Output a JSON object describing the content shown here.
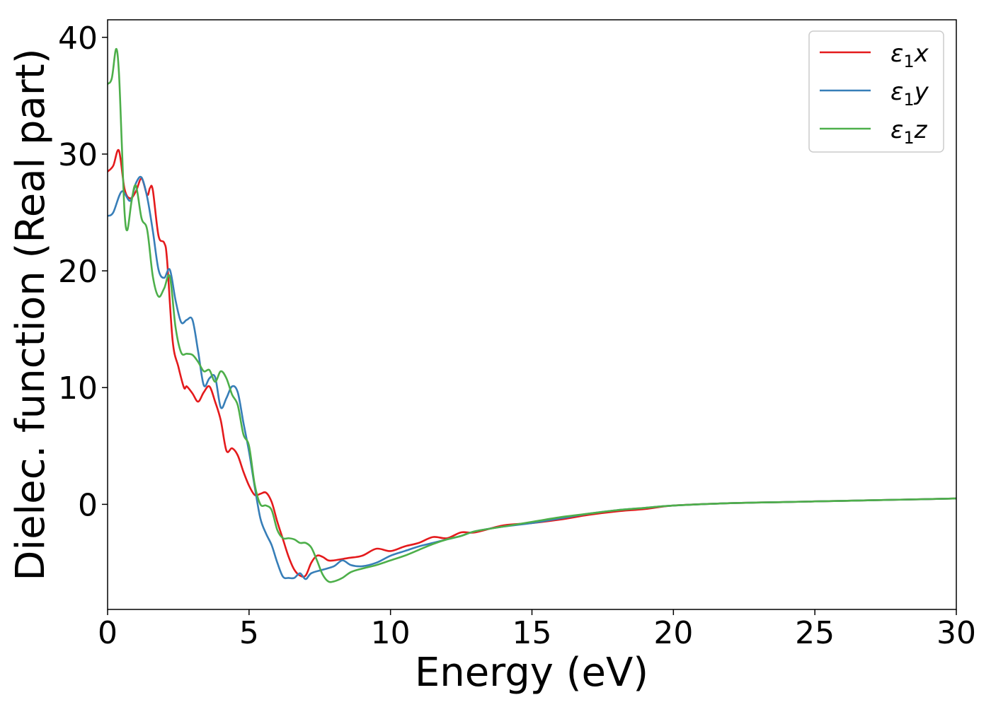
{
  "chart_data": {
    "type": "line",
    "title": "",
    "xlabel": "Energy (eV)",
    "ylabel": "Dielec. function (Real part)",
    "xlim": [
      0,
      30
    ],
    "ylim": [
      -9,
      41.5
    ],
    "xticks": [
      0,
      5,
      10,
      15,
      20,
      25,
      30
    ],
    "yticks": [
      0,
      10,
      20,
      30,
      40
    ],
    "grid": false,
    "legend_position": "top-right",
    "series": [
      {
        "name": "ε₁x",
        "label_base": "ε",
        "label_sub": "1",
        "label_axis": "x",
        "color": "#e41a1c",
        "x": [
          0,
          0.2,
          0.4,
          0.6,
          0.8,
          1.0,
          1.2,
          1.4,
          1.5,
          1.6,
          1.8,
          2.0,
          2.1,
          2.3,
          2.5,
          2.7,
          2.8,
          3.0,
          3.2,
          3.4,
          3.6,
          3.8,
          4.0,
          4.2,
          4.4,
          4.6,
          4.8,
          5.0,
          5.2,
          5.4,
          5.6,
          5.8,
          6.0,
          6.2,
          6.4,
          6.6,
          6.8,
          7.0,
          7.2,
          7.4,
          7.6,
          7.8,
          8.0,
          8.5,
          9.0,
          9.5,
          10.0,
          10.5,
          11.0,
          11.5,
          12.0,
          12.5,
          13.0,
          14.0,
          15.0,
          16.0,
          17.0,
          18.0,
          19.0,
          20.0,
          22.0,
          24.0,
          26.0,
          28.0,
          30.0
        ],
        "values": [
          28.5,
          29.0,
          30.3,
          27.0,
          26.2,
          26.8,
          27.9,
          26.5,
          27.1,
          26.9,
          23.0,
          22.4,
          21.0,
          14.0,
          11.8,
          10.0,
          10.1,
          9.5,
          8.8,
          9.6,
          10.1,
          8.8,
          7.2,
          4.6,
          4.8,
          4.2,
          2.8,
          1.6,
          0.8,
          0.9,
          1.0,
          0.2,
          -1.5,
          -3.0,
          -4.5,
          -5.6,
          -6.1,
          -6.1,
          -5.0,
          -4.4,
          -4.5,
          -4.8,
          -4.8,
          -4.6,
          -4.4,
          -3.8,
          -4.0,
          -3.6,
          -3.3,
          -2.8,
          -2.9,
          -2.4,
          -2.4,
          -1.8,
          -1.6,
          -1.3,
          -0.9,
          -0.6,
          -0.4,
          -0.1,
          0.1,
          0.2,
          0.3,
          0.4,
          0.5
        ]
      },
      {
        "name": "ε₁y",
        "label_base": "ε",
        "label_sub": "1",
        "label_axis": "y",
        "color": "#377eb8",
        "x": [
          0,
          0.2,
          0.5,
          0.8,
          1.0,
          1.2,
          1.4,
          1.6,
          1.8,
          2.0,
          2.2,
          2.4,
          2.6,
          2.8,
          3.0,
          3.2,
          3.4,
          3.6,
          3.8,
          4.0,
          4.2,
          4.4,
          4.6,
          4.8,
          5.0,
          5.2,
          5.4,
          5.6,
          5.8,
          6.0,
          6.2,
          6.4,
          6.6,
          6.8,
          7.0,
          7.2,
          7.6,
          8.0,
          8.3,
          8.6,
          9.0,
          9.5,
          10.0,
          10.5,
          11.0,
          11.5,
          12.0,
          12.5,
          13.0,
          14.0,
          15.0,
          16.0,
          17.0,
          18.0,
          19.0,
          20.0,
          22.0,
          24.0,
          26.0,
          28.0,
          30.0
        ],
        "values": [
          24.7,
          25.0,
          26.8,
          26.0,
          27.5,
          28.0,
          26.3,
          23.4,
          20.1,
          19.4,
          20.1,
          17.5,
          15.6,
          15.8,
          15.8,
          13.1,
          10.2,
          10.8,
          10.9,
          8.3,
          9.1,
          10.1,
          9.6,
          7.0,
          4.5,
          1.5,
          -1.2,
          -2.5,
          -3.5,
          -5.0,
          -6.2,
          -6.3,
          -6.3,
          -5.9,
          -6.4,
          -5.9,
          -5.6,
          -5.3,
          -4.8,
          -5.2,
          -5.3,
          -5.0,
          -4.4,
          -4.0,
          -3.6,
          -3.3,
          -3.0,
          -2.7,
          -2.3,
          -1.9,
          -1.6,
          -1.2,
          -0.8,
          -0.5,
          -0.3,
          -0.1,
          0.1,
          0.2,
          0.3,
          0.4,
          0.5
        ]
      },
      {
        "name": "ε₁z",
        "label_base": "ε",
        "label_sub": "1",
        "label_axis": "z",
        "color": "#4daf4a",
        "x": [
          0,
          0.15,
          0.3,
          0.4,
          0.5,
          0.6,
          0.7,
          0.85,
          1.0,
          1.2,
          1.4,
          1.6,
          1.8,
          2.0,
          2.2,
          2.4,
          2.6,
          2.8,
          3.0,
          3.2,
          3.4,
          3.6,
          3.8,
          4.0,
          4.2,
          4.4,
          4.6,
          4.8,
          5.0,
          5.2,
          5.4,
          5.6,
          5.8,
          6.0,
          6.2,
          6.4,
          6.6,
          6.8,
          7.0,
          7.2,
          7.4,
          7.6,
          7.8,
          8.0,
          8.3,
          8.6,
          9.0,
          9.5,
          10.0,
          10.5,
          11.0,
          11.5,
          12.0,
          12.5,
          13.0,
          14.0,
          15.0,
          16.0,
          17.0,
          18.0,
          19.0,
          20.0,
          22.0,
          24.0,
          26.0,
          28.0,
          30.0
        ],
        "values": [
          36.0,
          36.5,
          39.0,
          37.0,
          31.0,
          25.0,
          23.5,
          26.0,
          27.3,
          24.5,
          23.5,
          19.5,
          17.8,
          18.5,
          19.5,
          15.2,
          13.0,
          12.9,
          12.8,
          12.2,
          11.4,
          11.5,
          10.5,
          11.4,
          10.8,
          9.4,
          8.5,
          6.0,
          5.0,
          1.7,
          0.0,
          -0.1,
          -0.5,
          -2.2,
          -2.9,
          -2.9,
          -3.0,
          -3.3,
          -3.3,
          -3.7,
          -4.8,
          -6.0,
          -6.6,
          -6.6,
          -6.3,
          -5.8,
          -5.5,
          -5.2,
          -4.8,
          -4.4,
          -3.9,
          -3.4,
          -3.0,
          -2.7,
          -2.3,
          -1.9,
          -1.5,
          -1.1,
          -0.8,
          -0.5,
          -0.3,
          -0.1,
          0.1,
          0.2,
          0.3,
          0.4,
          0.5
        ]
      }
    ]
  }
}
